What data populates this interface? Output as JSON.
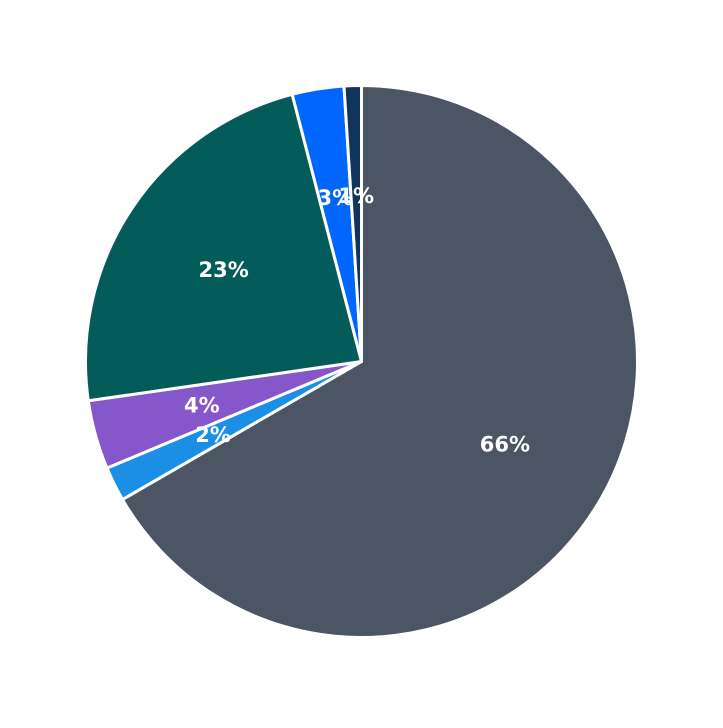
{
  "chart_data": {
    "type": "pie",
    "title": "",
    "slices": [
      {
        "value": 66,
        "label": "66%",
        "color": "#4b5563"
      },
      {
        "value": 2,
        "label": "2%",
        "color": "#1b8fe6"
      },
      {
        "value": 4,
        "label": "4%",
        "color": "#8657cb"
      },
      {
        "value": 23,
        "label": "23%",
        "color": "#045c5a"
      },
      {
        "value": 3,
        "label": "3%",
        "color": "#0166fe"
      },
      {
        "value": 1,
        "label": "1%",
        "color": "#11345c"
      }
    ],
    "start_angle": "top",
    "direction": "clockwise",
    "legend": "none"
  }
}
